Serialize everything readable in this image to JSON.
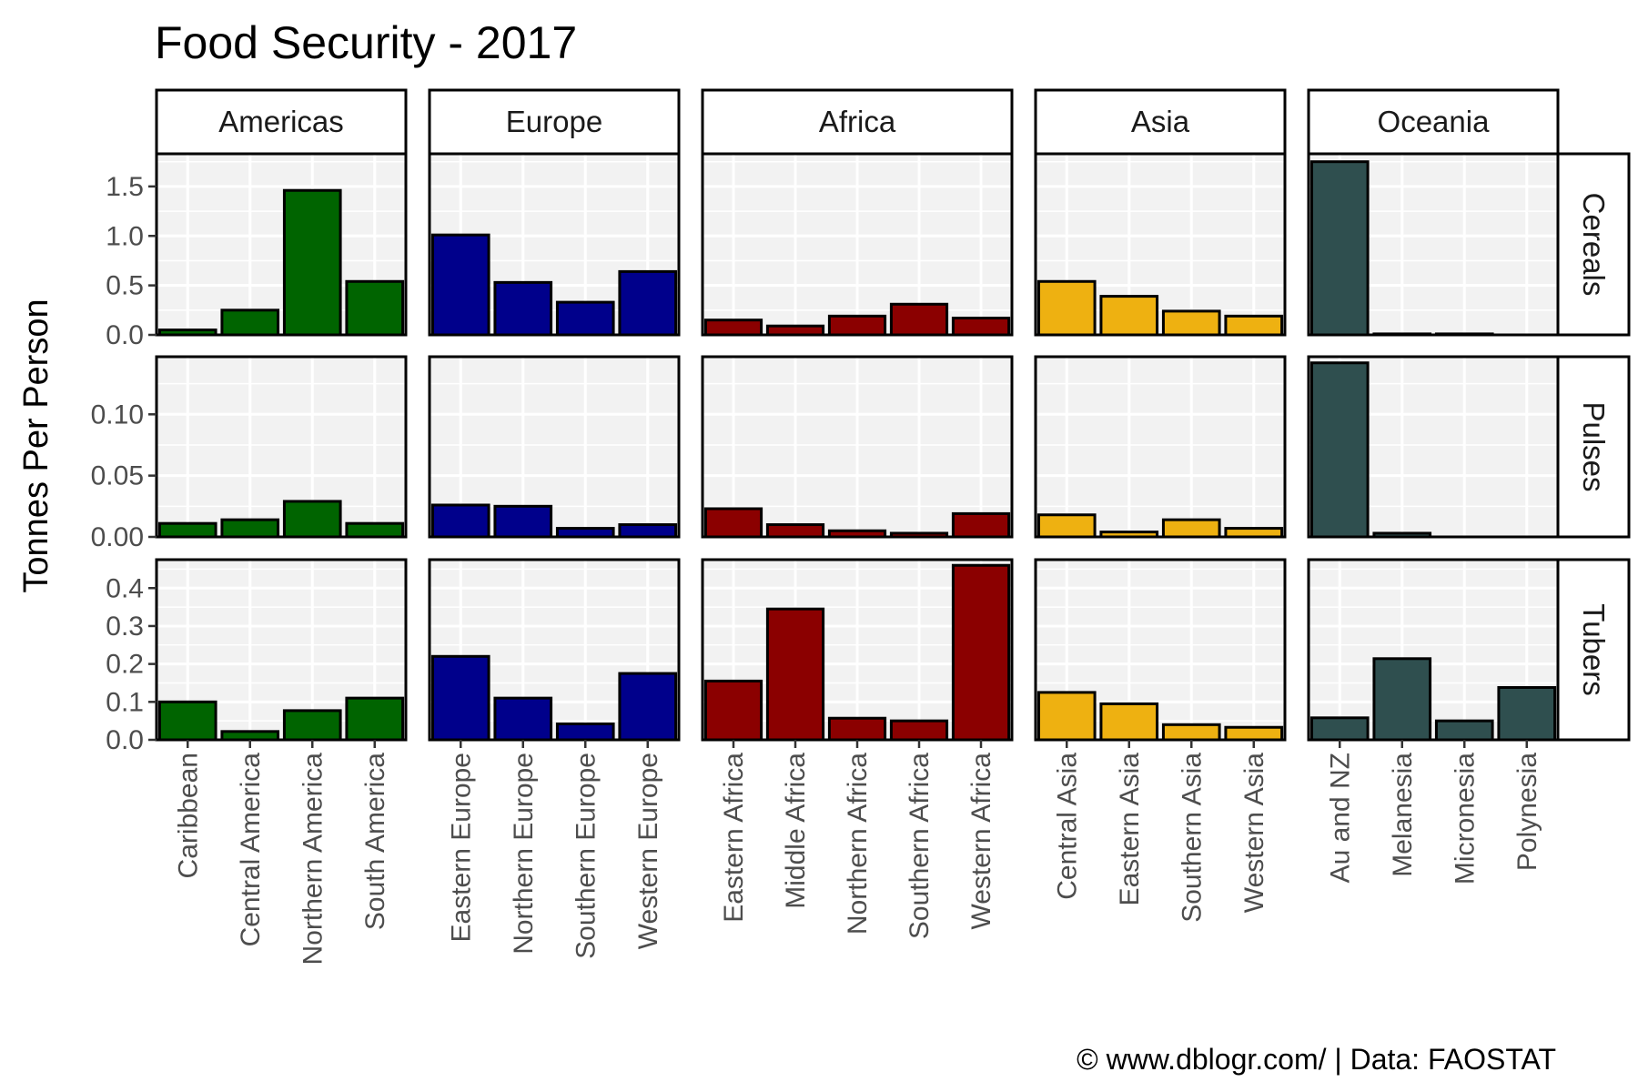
{
  "chart_data": {
    "type": "bar",
    "title": "Food Security - 2017",
    "ylabel": "Tonnes Per Person",
    "caption": "© www.dblogr.com/  |  Data: FAOSTAT",
    "grid": true,
    "facet_columns": [
      {
        "name": "Americas",
        "color": "#006400",
        "categories": [
          "Caribbean",
          "Central America",
          "Northern America",
          "South America"
        ]
      },
      {
        "name": "Europe",
        "color": "#00008B",
        "categories": [
          "Eastern Europe",
          "Northern Europe",
          "Southern Europe",
          "Western Europe"
        ]
      },
      {
        "name": "Africa",
        "color": "#8B0000",
        "categories": [
          "Eastern Africa",
          "Middle Africa",
          "Northern Africa",
          "Southern Africa",
          "Western Africa"
        ]
      },
      {
        "name": "Asia",
        "color": "#EEB111",
        "categories": [
          "Central Asia",
          "Eastern Asia",
          "Southern Asia",
          "Western Asia"
        ]
      },
      {
        "name": "Oceania",
        "color": "#2F4F4F",
        "categories": [
          "Au and NZ",
          "Melanesia",
          "Micronesia",
          "Polynesia"
        ]
      }
    ],
    "facet_rows": [
      {
        "name": "Cereals",
        "ylim": [
          0,
          1.83
        ],
        "ticks": [
          0.0,
          0.5,
          1.0,
          1.5
        ],
        "tick_labels": [
          "0.0",
          "0.5",
          "1.0",
          "1.5"
        ],
        "values": {
          "Americas": [
            0.05,
            0.25,
            1.46,
            0.54
          ],
          "Europe": [
            1.01,
            0.53,
            0.33,
            0.64
          ],
          "Africa": [
            0.15,
            0.09,
            0.19,
            0.31,
            0.17
          ],
          "Asia": [
            0.54,
            0.39,
            0.24,
            0.19
          ],
          "Oceania": [
            1.75,
            0.01,
            0.01,
            0.0
          ]
        }
      },
      {
        "name": "Pulses",
        "ylim": [
          0,
          0.147
        ],
        "ticks": [
          0.0,
          0.05,
          0.1
        ],
        "tick_labels": [
          "0.00",
          "0.05",
          "0.10"
        ],
        "values": {
          "Americas": [
            0.011,
            0.014,
            0.029,
            0.011
          ],
          "Europe": [
            0.026,
            0.025,
            0.007,
            0.01
          ],
          "Africa": [
            0.023,
            0.01,
            0.005,
            0.003,
            0.019
          ],
          "Asia": [
            0.018,
            0.004,
            0.014,
            0.007
          ],
          "Oceania": [
            0.142,
            0.003,
            0.0,
            0.0
          ]
        }
      },
      {
        "name": "Tubers",
        "ylim": [
          0,
          0.475
        ],
        "ticks": [
          0.0,
          0.1,
          0.2,
          0.3,
          0.4
        ],
        "tick_labels": [
          "0.0",
          "0.1",
          "0.2",
          "0.3",
          "0.4"
        ],
        "values": {
          "Americas": [
            0.1,
            0.022,
            0.077,
            0.11
          ],
          "Europe": [
            0.22,
            0.11,
            0.042,
            0.175
          ],
          "Africa": [
            0.155,
            0.345,
            0.057,
            0.05,
            0.46
          ],
          "Asia": [
            0.125,
            0.095,
            0.04,
            0.033
          ],
          "Oceania": [
            0.058,
            0.214,
            0.05,
            0.138
          ]
        }
      }
    ]
  }
}
